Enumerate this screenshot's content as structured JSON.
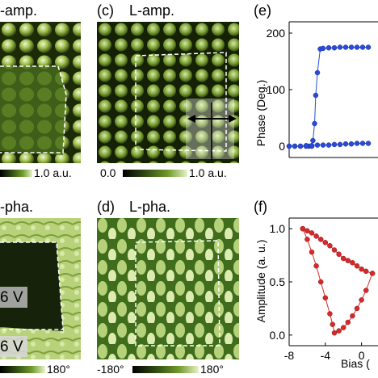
{
  "panels": {
    "a": {
      "title": "-amp."
    },
    "c": {
      "letter": "(c)",
      "title": "L-amp."
    },
    "e": {
      "letter": "(e)"
    },
    "b": {
      "title": "-pha."
    },
    "d": {
      "letter": "(d)",
      "title": "L-pha."
    },
    "f": {
      "letter": "(f)"
    }
  },
  "colorbars": {
    "amp_left_max": "1.0 a.u.",
    "amp_right_min": "0.0",
    "amp_right_max": "1.0 a.u.",
    "pha_left_max": "180°",
    "pha_right_min": "-180°",
    "pha_right_max": "180°"
  },
  "annotations": {
    "bias_top": "6 V",
    "bias_bottom": "6 V"
  },
  "colors": {
    "phase": "#2a4bd7",
    "amplitude": "#d62a2a"
  },
  "chart_data": [
    {
      "type": "scatter",
      "ylabel": "Phase (Deg.)",
      "ylim": [
        -20,
        220
      ],
      "yticks": [
        "0",
        "100",
        "200"
      ],
      "series": [
        {
          "x": [
            -8,
            -7,
            -6,
            -5,
            -4.5,
            -4,
            -3.8,
            -3.5,
            -3.3,
            -3,
            -2.5,
            -2,
            -1,
            0,
            1,
            2,
            3,
            4,
            5,
            6
          ],
          "values": [
            0,
            0,
            0,
            0,
            0,
            0,
            10,
            40,
            90,
            130,
            172,
            173,
            174,
            174,
            175,
            175,
            175,
            175,
            175,
            175
          ]
        },
        {
          "x": [
            6,
            5,
            4,
            3,
            2,
            1,
            0,
            -1,
            -2,
            -3,
            -4,
            -5,
            -6,
            -7,
            -8
          ],
          "values": [
            5,
            5,
            5,
            4,
            4,
            3,
            3,
            2,
            2,
            2,
            1,
            1,
            0,
            0,
            0
          ]
        }
      ]
    },
    {
      "type": "line",
      "xlabel": "Bias (",
      "ylabel": "Amplitude (a. u.)",
      "xlim": [
        -8,
        2
      ],
      "ylim": [
        -0.1,
        1.1
      ],
      "xticks": [
        "-8",
        "-4",
        "0"
      ],
      "yticks": [
        "0.0",
        "0.5",
        "1.0"
      ],
      "series": [
        {
          "x": [
            -6.5,
            -6,
            -5.5,
            -5,
            -4.5,
            -4,
            -3.5,
            -3,
            -2.5,
            -2,
            -1.5,
            -1,
            -0.5,
            0,
            0.5,
            1.2
          ],
          "values": [
            1.0,
            0.98,
            0.96,
            0.93,
            0.9,
            0.87,
            0.84,
            0.8,
            0.76,
            0.72,
            0.7,
            0.68,
            0.65,
            0.62,
            0.6,
            0.58
          ]
        },
        {
          "x": [
            1.2,
            0.5,
            0,
            -0.5,
            -1,
            -1.5,
            -2,
            -2.5,
            -3,
            -3.2,
            -3.5,
            -4,
            -4.5,
            -5,
            -5.5,
            -6,
            -6.5
          ],
          "values": [
            0.58,
            0.42,
            0.33,
            0.25,
            0.18,
            0.12,
            0.07,
            0.04,
            0.02,
            0.1,
            0.2,
            0.35,
            0.5,
            0.65,
            0.78,
            0.9,
            1.0
          ]
        }
      ]
    }
  ]
}
